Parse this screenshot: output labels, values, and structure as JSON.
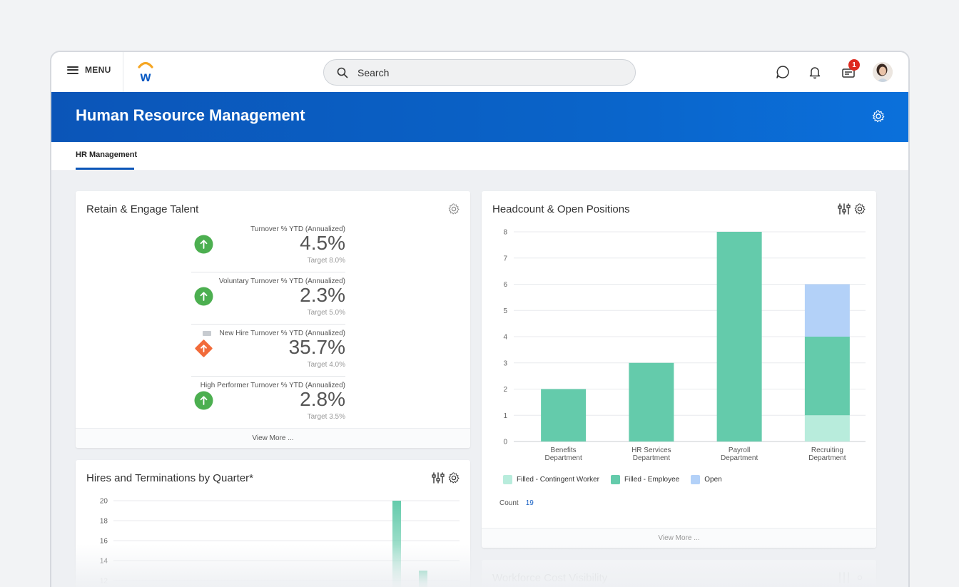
{
  "topbar": {
    "menu_label": "MENU",
    "search_placeholder": "Search",
    "notification_badge": "1"
  },
  "header": {
    "title": "Human Resource Management"
  },
  "tabs": [
    {
      "label": "HR Management",
      "active": true
    }
  ],
  "retain_card": {
    "title": "Retain & Engage Talent",
    "metrics": [
      {
        "label": "Turnover % YTD (Annualized)",
        "value": "4.5%",
        "target": "Target 8.0%",
        "status": "up-green"
      },
      {
        "label": "Voluntary Turnover % YTD (Annualized)",
        "value": "2.3%",
        "target": "Target 5.0%",
        "status": "up-green"
      },
      {
        "label": "New Hire Turnover % YTD (Annualized)",
        "value": "35.7%",
        "target": "Target 4.0%",
        "status": "warning-orange"
      },
      {
        "label": "High Performer Turnover % YTD (Annualized)",
        "value": "2.8%",
        "target": "Target 3.5%",
        "status": "up-green"
      }
    ],
    "view_more": "View More ..."
  },
  "hires_card": {
    "title": "Hires and Terminations by Quarter*",
    "chart_data": {
      "type": "bar",
      "yticks": [
        20,
        18,
        16,
        14,
        12
      ],
      "values_visible": [
        20,
        13
      ]
    }
  },
  "headcount_card": {
    "title": "Headcount & Open Positions",
    "chart_data": {
      "type": "bar",
      "stacked": true,
      "categories": [
        "Benefits Department",
        "HR Services Department",
        "Payroll Department",
        "Recruiting Department"
      ],
      "series": [
        {
          "name": "Filled - Contingent Worker",
          "values": [
            0,
            0,
            0,
            1
          ],
          "color": "#b8ecdc"
        },
        {
          "name": "Filled - Employee",
          "values": [
            2,
            3,
            8,
            3
          ],
          "color": "#64cbab"
        },
        {
          "name": "Open",
          "values": [
            0,
            0,
            0,
            2
          ],
          "color": "#b3d1f8"
        }
      ],
      "ylim": [
        0,
        8
      ],
      "yticks": [
        0,
        1,
        2,
        3,
        4,
        5,
        6,
        7,
        8
      ],
      "grid": true,
      "legend": "bottom-left"
    },
    "count_label": "Count",
    "count_value": "19",
    "view_more": "View More ..."
  },
  "workforce_card": {
    "title": "Workforce Cost Visibility"
  },
  "colors": {
    "brand_blue": "#0b55b8",
    "green_status": "#4caf50",
    "orange_status": "#f26b3a"
  }
}
